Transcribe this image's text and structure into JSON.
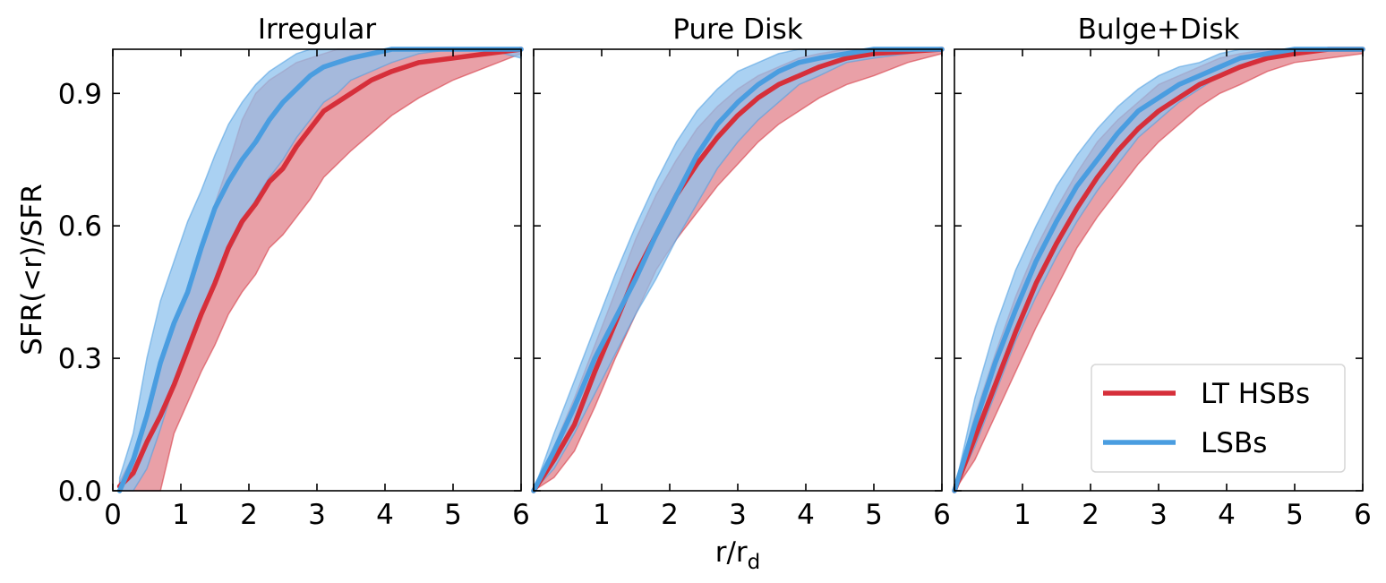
{
  "colors": {
    "red": "#d62f3a",
    "blue": "#4a9de0",
    "red_band": "#e2808a",
    "blue_band": "#8ec2ee"
  },
  "figure": {
    "xlabel_main": "r/r",
    "xlabel_sub": "d",
    "ylabel": "SFR(<r)/SFR"
  },
  "legend": {
    "placement": "lower-right of third panel",
    "entries": [
      {
        "label": "LT HSBs",
        "color": "#d62f3a"
      },
      {
        "label": "LSBs",
        "color": "#4a9de0"
      }
    ]
  },
  "chart_data": [
    {
      "type": "line",
      "title": "Irregular",
      "xlim": [
        0,
        6
      ],
      "ylim": [
        0,
        1
      ],
      "xticks": [
        "0",
        "1",
        "2",
        "3",
        "4",
        "5",
        "6"
      ],
      "yticks": [
        "0.0",
        "0.3",
        "0.6",
        "0.9"
      ],
      "series": [
        {
          "name": "LT HSBs",
          "x": [
            0.1,
            0.3,
            0.5,
            0.7,
            0.9,
            1.1,
            1.3,
            1.5,
            1.7,
            1.9,
            2.1,
            2.3,
            2.5,
            2.7,
            2.9,
            3.1,
            3.3,
            3.5,
            3.8,
            4.1,
            4.5,
            5.0,
            5.5,
            6.0
          ],
          "y": [
            0.01,
            0.04,
            0.11,
            0.17,
            0.24,
            0.32,
            0.4,
            0.47,
            0.55,
            0.61,
            0.65,
            0.7,
            0.73,
            0.78,
            0.82,
            0.86,
            0.88,
            0.9,
            0.93,
            0.95,
            0.97,
            0.98,
            0.99,
            1.0
          ],
          "lower": [
            0.0,
            0.0,
            0.0,
            0.0,
            0.13,
            0.2,
            0.27,
            0.33,
            0.4,
            0.45,
            0.49,
            0.55,
            0.58,
            0.62,
            0.66,
            0.71,
            0.74,
            0.77,
            0.81,
            0.85,
            0.89,
            0.93,
            0.96,
            0.99
          ],
          "upper": [
            0.02,
            0.08,
            0.18,
            0.29,
            0.37,
            0.46,
            0.56,
            0.65,
            0.74,
            0.84,
            0.9,
            0.93,
            0.95,
            0.97,
            0.98,
            0.99,
            1.0,
            1.0,
            1.0,
            1.0,
            1.0,
            1.0,
            1.0,
            1.0
          ]
        },
        {
          "name": "LSBs",
          "x": [
            0.1,
            0.3,
            0.5,
            0.7,
            0.9,
            1.1,
            1.3,
            1.5,
            1.7,
            1.9,
            2.1,
            2.3,
            2.5,
            2.7,
            2.9,
            3.1,
            3.3,
            3.5,
            3.8,
            4.1,
            4.5,
            5.0,
            5.5,
            6.0
          ],
          "y": [
            0.0,
            0.07,
            0.17,
            0.29,
            0.38,
            0.45,
            0.55,
            0.64,
            0.7,
            0.75,
            0.79,
            0.84,
            0.88,
            0.91,
            0.94,
            0.96,
            0.97,
            0.98,
            0.99,
            1.0,
            1.0,
            1.0,
            1.0,
            1.0
          ],
          "lower": [
            0.0,
            0.0,
            0.05,
            0.14,
            0.24,
            0.32,
            0.4,
            0.47,
            0.54,
            0.6,
            0.66,
            0.71,
            0.75,
            0.8,
            0.84,
            0.88,
            0.9,
            0.93,
            0.95,
            0.97,
            0.99,
            1.0,
            1.0,
            0.98
          ],
          "upper": [
            0.03,
            0.13,
            0.3,
            0.43,
            0.52,
            0.61,
            0.68,
            0.76,
            0.83,
            0.88,
            0.92,
            0.95,
            0.97,
            0.99,
            1.0,
            1.0,
            1.0,
            1.0,
            1.0,
            1.0,
            1.0,
            1.0,
            1.0,
            1.0
          ]
        }
      ]
    },
    {
      "type": "line",
      "title": "Pure Disk",
      "xlim": [
        0,
        6
      ],
      "ylim": [
        0,
        1
      ],
      "xticks": [
        "",
        "1",
        "2",
        "3",
        "4",
        "5",
        "6"
      ],
      "yticks": [],
      "series": [
        {
          "name": "LT HSBs",
          "x": [
            0.0,
            0.3,
            0.6,
            0.9,
            1.2,
            1.5,
            1.8,
            2.1,
            2.4,
            2.7,
            3.0,
            3.3,
            3.6,
            3.9,
            4.2,
            4.6,
            5.0,
            5.5,
            6.0
          ],
          "y": [
            0.0,
            0.07,
            0.15,
            0.27,
            0.38,
            0.49,
            0.58,
            0.67,
            0.74,
            0.8,
            0.85,
            0.89,
            0.92,
            0.94,
            0.96,
            0.98,
            0.99,
            0.995,
            1.0
          ],
          "lower": [
            0.0,
            0.03,
            0.09,
            0.19,
            0.3,
            0.4,
            0.5,
            0.57,
            0.63,
            0.69,
            0.74,
            0.79,
            0.83,
            0.86,
            0.89,
            0.92,
            0.94,
            0.97,
            0.99
          ],
          "upper": [
            0.0,
            0.1,
            0.21,
            0.33,
            0.45,
            0.57,
            0.67,
            0.75,
            0.82,
            0.87,
            0.91,
            0.94,
            0.96,
            0.98,
            0.99,
            1.0,
            1.0,
            1.0,
            1.0
          ]
        },
        {
          "name": "LSBs",
          "x": [
            0.0,
            0.3,
            0.6,
            0.9,
            1.2,
            1.5,
            1.8,
            2.1,
            2.4,
            2.7,
            3.0,
            3.3,
            3.6,
            3.9,
            4.2,
            4.6,
            5.0,
            5.5,
            6.0
          ],
          "y": [
            0.0,
            0.09,
            0.19,
            0.3,
            0.39,
            0.48,
            0.58,
            0.67,
            0.76,
            0.83,
            0.88,
            0.92,
            0.95,
            0.97,
            0.98,
            0.99,
            1.0,
            1.0,
            1.0
          ],
          "lower": [
            0.0,
            0.05,
            0.13,
            0.22,
            0.31,
            0.4,
            0.48,
            0.57,
            0.65,
            0.73,
            0.79,
            0.84,
            0.88,
            0.92,
            0.94,
            0.97,
            0.98,
            0.99,
            1.0
          ],
          "upper": [
            0.0,
            0.13,
            0.25,
            0.37,
            0.49,
            0.6,
            0.7,
            0.79,
            0.86,
            0.91,
            0.95,
            0.97,
            0.99,
            1.0,
            1.0,
            1.0,
            1.0,
            1.0,
            1.0
          ]
        }
      ]
    },
    {
      "type": "line",
      "title": "Bulge+Disk",
      "xlim": [
        0,
        6
      ],
      "ylim": [
        0,
        1
      ],
      "xticks": [
        "",
        "1",
        "2",
        "3",
        "4",
        "5",
        "6"
      ],
      "yticks": [],
      "series": [
        {
          "name": "LT HSBs",
          "x": [
            0.0,
            0.3,
            0.6,
            0.9,
            1.2,
            1.5,
            1.8,
            2.1,
            2.4,
            2.7,
            3.0,
            3.3,
            3.6,
            3.9,
            4.2,
            4.6,
            5.0,
            5.5,
            6.0
          ],
          "y": [
            0.0,
            0.12,
            0.24,
            0.36,
            0.47,
            0.56,
            0.64,
            0.71,
            0.77,
            0.82,
            0.86,
            0.89,
            0.92,
            0.94,
            0.96,
            0.98,
            0.99,
            1.0,
            1.0
          ],
          "lower": [
            0.0,
            0.07,
            0.17,
            0.27,
            0.37,
            0.46,
            0.55,
            0.62,
            0.68,
            0.74,
            0.79,
            0.83,
            0.87,
            0.9,
            0.92,
            0.95,
            0.97,
            0.98,
            0.99
          ],
          "upper": [
            0.0,
            0.17,
            0.31,
            0.44,
            0.55,
            0.64,
            0.72,
            0.79,
            0.84,
            0.88,
            0.92,
            0.94,
            0.96,
            0.98,
            0.99,
            1.0,
            1.0,
            1.0,
            1.0
          ]
        },
        {
          "name": "LSBs",
          "x": [
            0.0,
            0.3,
            0.6,
            0.9,
            1.2,
            1.5,
            1.8,
            2.1,
            2.4,
            2.7,
            3.0,
            3.3,
            3.6,
            3.9,
            4.2,
            4.6,
            5.0,
            5.5,
            6.0
          ],
          "y": [
            0.0,
            0.15,
            0.29,
            0.41,
            0.52,
            0.61,
            0.69,
            0.75,
            0.81,
            0.86,
            0.89,
            0.92,
            0.94,
            0.96,
            0.98,
            0.99,
            1.0,
            1.0,
            1.0
          ],
          "lower": [
            0.0,
            0.1,
            0.22,
            0.34,
            0.44,
            0.53,
            0.61,
            0.68,
            0.74,
            0.8,
            0.84,
            0.88,
            0.91,
            0.94,
            0.96,
            0.98,
            0.99,
            1.0,
            1.0
          ],
          "upper": [
            0.0,
            0.21,
            0.37,
            0.5,
            0.6,
            0.69,
            0.76,
            0.82,
            0.87,
            0.91,
            0.94,
            0.96,
            0.97,
            0.99,
            1.0,
            1.0,
            1.0,
            1.0,
            1.0
          ]
        }
      ]
    }
  ]
}
